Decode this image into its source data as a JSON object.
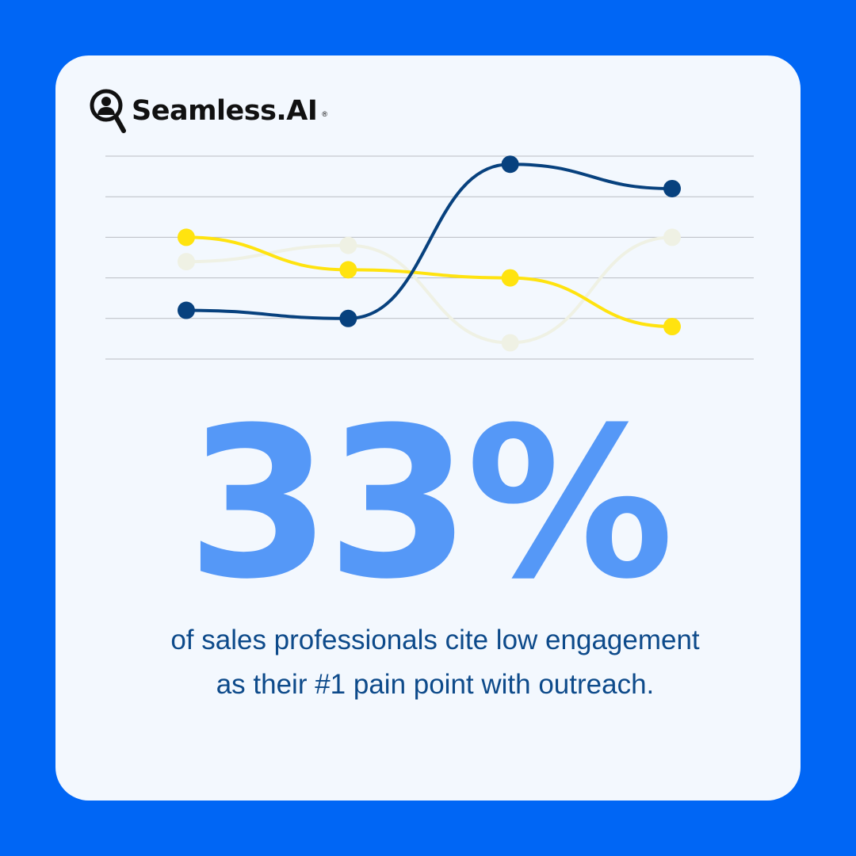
{
  "brand": {
    "name": "Seamless.AI",
    "registered": "®"
  },
  "stat": {
    "value": "33%",
    "caption_line1": "of sales professionals cite low engagement",
    "caption_line2": "as their #1 pain point with outreach."
  },
  "colors": {
    "background": "#0066f5",
    "card": "#f3f8fe",
    "stat": "#5598f7",
    "caption": "#0d4a8a"
  },
  "chart_data": {
    "type": "line",
    "x": [
      1,
      2,
      3,
      4
    ],
    "ylim": [
      0,
      5
    ],
    "grid": true,
    "series": [
      {
        "color": "#07417e",
        "values": [
          1.2,
          1.0,
          4.8,
          4.2
        ]
      },
      {
        "color": "#ffe30f",
        "values": [
          3.0,
          2.2,
          2.0,
          0.8
        ]
      },
      {
        "color": "#eff1e4",
        "values": [
          2.4,
          2.8,
          0.4,
          3.0
        ]
      }
    ]
  }
}
